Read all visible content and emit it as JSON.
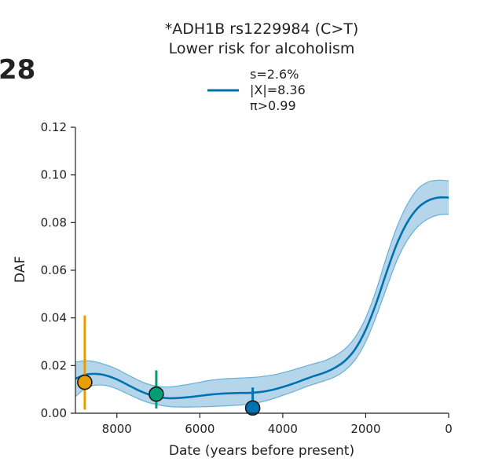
{
  "panel_label": "28",
  "chart_data": {
    "type": "line",
    "title": "*ADH1B rs1229984 (C>T)",
    "subtitle": "Lower risk for alcoholism",
    "xlabel": "Date (years before present)",
    "ylabel": "DAF",
    "x_reversed": true,
    "xlim": [
      9000,
      0
    ],
    "ylim": [
      0,
      0.12
    ],
    "x_ticks": [
      8000,
      6000,
      4000,
      2000,
      0
    ],
    "x_tick_labels": [
      "8000",
      "6000",
      "4000",
      "2000",
      "0"
    ],
    "y_ticks": [
      0,
      0.02,
      0.04,
      0.06,
      0.08,
      0.1,
      0.12
    ],
    "y_tick_labels": [
      "0.00",
      "0.02",
      "0.04",
      "0.06",
      "0.08",
      "0.10",
      "0.12"
    ],
    "legend": {
      "placement": "top-center",
      "lines": [
        "s=2.6%",
        "|X|=8.36",
        "π>0.99"
      ],
      "color": "#0072b2"
    },
    "series": [
      {
        "color": "#0072b2",
        "band_color": "#6baed6",
        "x": [
          9000,
          8750,
          8500,
          8250,
          8000,
          7750,
          7500,
          7250,
          7000,
          6750,
          6500,
          6250,
          6000,
          5750,
          5500,
          5250,
          5000,
          4750,
          4500,
          4250,
          4000,
          3750,
          3500,
          3250,
          3000,
          2750,
          2500,
          2250,
          2000,
          1750,
          1500,
          1250,
          1000,
          750,
          500,
          250,
          0
        ],
        "y": [
          0.0145,
          0.0162,
          0.0165,
          0.0158,
          0.0142,
          0.012,
          0.0098,
          0.008,
          0.0068,
          0.0063,
          0.0064,
          0.0068,
          0.0073,
          0.0078,
          0.0082,
          0.0084,
          0.0085,
          0.0086,
          0.009,
          0.0098,
          0.011,
          0.0124,
          0.014,
          0.0156,
          0.017,
          0.019,
          0.022,
          0.027,
          0.035,
          0.046,
          0.059,
          0.071,
          0.08,
          0.086,
          0.0892,
          0.0905,
          0.0905
        ],
        "lower": [
          0.007,
          0.0105,
          0.0118,
          0.0116,
          0.0102,
          0.0082,
          0.0062,
          0.0045,
          0.0035,
          0.0028,
          0.0026,
          0.0026,
          0.0027,
          0.0028,
          0.003,
          0.0032,
          0.0035,
          0.004,
          0.0048,
          0.006,
          0.0075,
          0.009,
          0.0107,
          0.0122,
          0.0136,
          0.0152,
          0.018,
          0.0225,
          0.03,
          0.0405,
          0.0525,
          0.064,
          0.0725,
          0.0782,
          0.0815,
          0.0832,
          0.0835
        ],
        "upper": [
          0.0215,
          0.022,
          0.0215,
          0.0202,
          0.0185,
          0.0162,
          0.014,
          0.0122,
          0.0112,
          0.011,
          0.0115,
          0.0122,
          0.013,
          0.0138,
          0.0143,
          0.0146,
          0.0148,
          0.015,
          0.0154,
          0.016,
          0.017,
          0.0182,
          0.0195,
          0.0208,
          0.022,
          0.024,
          0.027,
          0.032,
          0.04,
          0.0515,
          0.0655,
          0.078,
          0.0875,
          0.094,
          0.097,
          0.0978,
          0.0975
        ]
      }
    ],
    "points": [
      {
        "x": 8775,
        "y": 0.013,
        "y_low": 0.0015,
        "y_high": 0.041,
        "color": "#e69f00"
      },
      {
        "x": 7050,
        "y": 0.008,
        "y_low": 0.002,
        "y_high": 0.018,
        "color": "#009e73"
      },
      {
        "x": 4725,
        "y": 0.0022,
        "y_low": 0.0,
        "y_high": 0.0108,
        "color": "#0072b2"
      }
    ]
  }
}
